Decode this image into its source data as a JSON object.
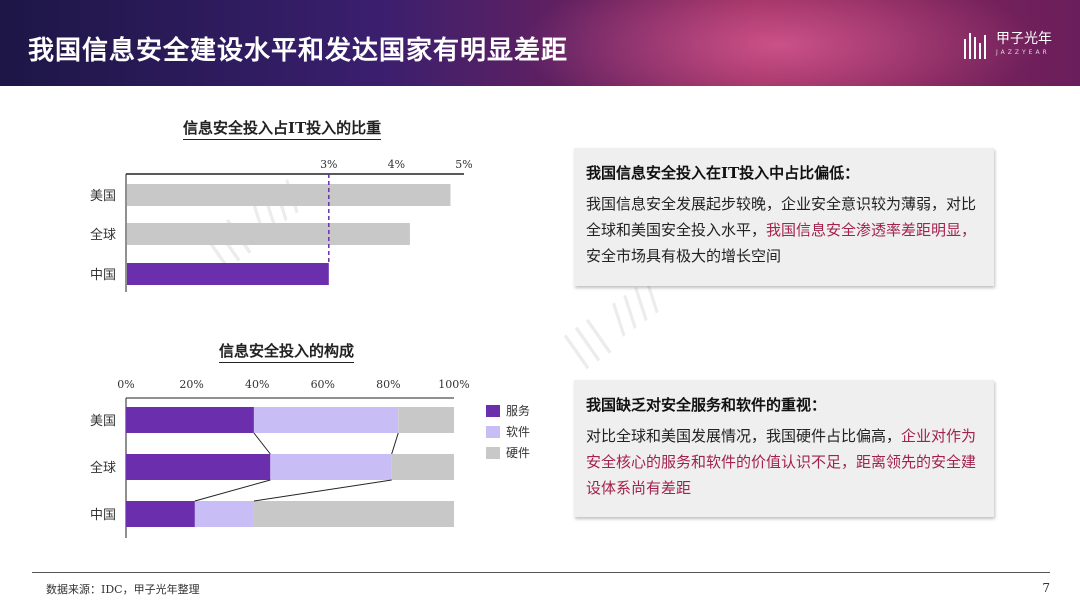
{
  "header": {
    "title": "我国信息安全建设水平和发达国家有明显差距",
    "brand_name": "甲子光年",
    "brand_sub": "JAZZYEAR",
    "colors": {
      "purple": "#6b2fae",
      "magenta": "#a3224b"
    }
  },
  "chart_data": [
    {
      "type": "bar",
      "orientation": "horizontal",
      "title": "信息安全投入占IT投入的比重",
      "categories": [
        "美国",
        "全球",
        "中国"
      ],
      "values": [
        4.8,
        4.2,
        3.0
      ],
      "xlim": [
        0,
        5
      ],
      "tick_labels": [
        "3%",
        "4%",
        "5%"
      ],
      "tick_values": [
        3,
        4,
        5
      ],
      "reference_line": 3,
      "bar_colors": [
        "#c8c8c8",
        "#c8c8c8",
        "#6b2fae"
      ]
    },
    {
      "type": "bar",
      "orientation": "horizontal",
      "stacked": true,
      "title": "信息安全投入的构成",
      "categories": [
        "美国",
        "全球",
        "中国"
      ],
      "tick_labels": [
        "0%",
        "20%",
        "40%",
        "60%",
        "80%",
        "100%"
      ],
      "tick_values": [
        0,
        20,
        40,
        60,
        80,
        100
      ],
      "xlim": [
        0,
        100
      ],
      "series": [
        {
          "name": "服务",
          "color": "#6b2fae",
          "values": [
            39,
            44,
            21
          ]
        },
        {
          "name": "软件",
          "color": "#c9bdf5",
          "values": [
            44,
            37,
            18
          ]
        },
        {
          "name": "硬件",
          "color": "#c8c8c8",
          "values": [
            17,
            19,
            61
          ]
        }
      ]
    }
  ],
  "callouts": [
    {
      "title": "我国信息安全投入在IT投入中占比偏低：",
      "body_plain": "我国信息安全发展起步较晚，企业安全意识较为薄弱，对比全球和美国安全投入水平，",
      "body_highlight": "我国信息安全渗透率差距明显，",
      "body_tail": "安全市场具有极大的增长空间"
    },
    {
      "title": "我国缺乏对安全服务和软件的重视：",
      "body_plain": "对比全球和美国发展情况，我国硬件占比偏高，",
      "body_highlight": "企业对作为安全核心的服务和软件的价值认识不足，距离领先的安全建设体系尚有差距",
      "body_tail": ""
    }
  ],
  "footer": {
    "source": "数据来源：IDC，甲子光年整理",
    "page": "7"
  }
}
